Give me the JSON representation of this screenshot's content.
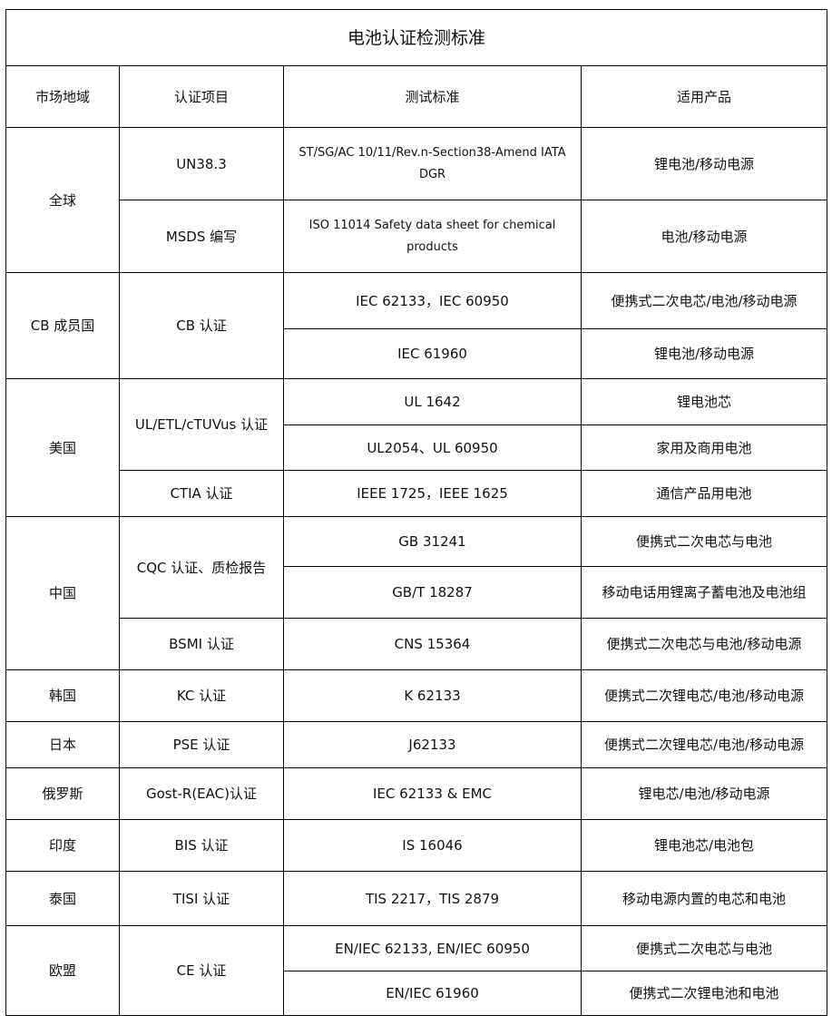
{
  "title": "电池认证检测标准",
  "headers": [
    "市场地域",
    "认证项目",
    "测试标准",
    "适用产品"
  ],
  "rows": {
    "global": "全球",
    "un383": "UN38.3",
    "un383_std": "ST/SG/AC 10/11/Rev.n-Section38-Amend IATA DGR",
    "un383_prod": "锂电池/移动电源",
    "msds": "MSDS 编写",
    "msds_std": "ISO 11014 Safety data sheet for chemical products",
    "msds_prod": "电池/移动电源",
    "cb_region": "CB 成员国",
    "cb": "CB 认证",
    "cb_std1": "IEC 62133，IEC 60950",
    "cb_prod1": "便携式二次电芯/电池/移动电源",
    "cb_std2": "IEC 61960",
    "cb_prod2": "锂电池/移动电源",
    "us": "美国",
    "ul": "UL/ETL/cTUVus 认证",
    "ul_std1": "UL 1642",
    "ul_prod1": "锂电池芯",
    "ul_std2": "UL2054、UL 60950",
    "ul_prod2": "家用及商用电池",
    "ctia": "CTIA 认证",
    "ctia_std": "IEEE 1725，IEEE 1625",
    "ctia_prod": "通信产品用电池",
    "cn": "中国",
    "cqc": "CQC 认证、质检报告",
    "cqc_std1": "GB 31241",
    "cqc_prod1": "便携式二次电芯与电池",
    "cqc_std2": "GB/T 18287",
    "cqc_prod2": "移动电话用锂离子蓄电池及电池组",
    "bsmi": "BSMI 认证",
    "bsmi_std": "CNS 15364",
    "bsmi_prod": "便携式二次电芯与电池/移动电源",
    "kr": "韩国",
    "kc": "KC 认证",
    "kc_std": "K 62133",
    "kc_prod": "便携式二次锂电芯/电池/移动电源",
    "jp": "日本",
    "pse": "PSE 认证",
    "pse_std": "J62133",
    "pse_prod": "便携式二次锂电芯/电池/移动电源",
    "ru": "俄罗斯",
    "gost": "Gost-R(EAC)认证",
    "gost_std": "IEC 62133 & EMC",
    "gost_prod": "锂电芯/电池/移动电源",
    "in": "印度",
    "bis": "BIS 认证",
    "bis_std": "IS 16046",
    "bis_prod": "锂电池芯/电池包",
    "th": "泰国",
    "tisi": "TISI 认证",
    "tisi_std": "TIS 2217，TIS 2879",
    "tisi_prod": "移动电源内置的电芯和电池",
    "eu": "欧盟",
    "ce": "CE 认证",
    "ce_std1": "EN/IEC 62133, EN/IEC 60950",
    "ce_prod1": "便携式二次电芯与电池",
    "ce_std2": "EN/IEC 61960",
    "ce_prod2": "便携式二次锂电池和电池"
  }
}
